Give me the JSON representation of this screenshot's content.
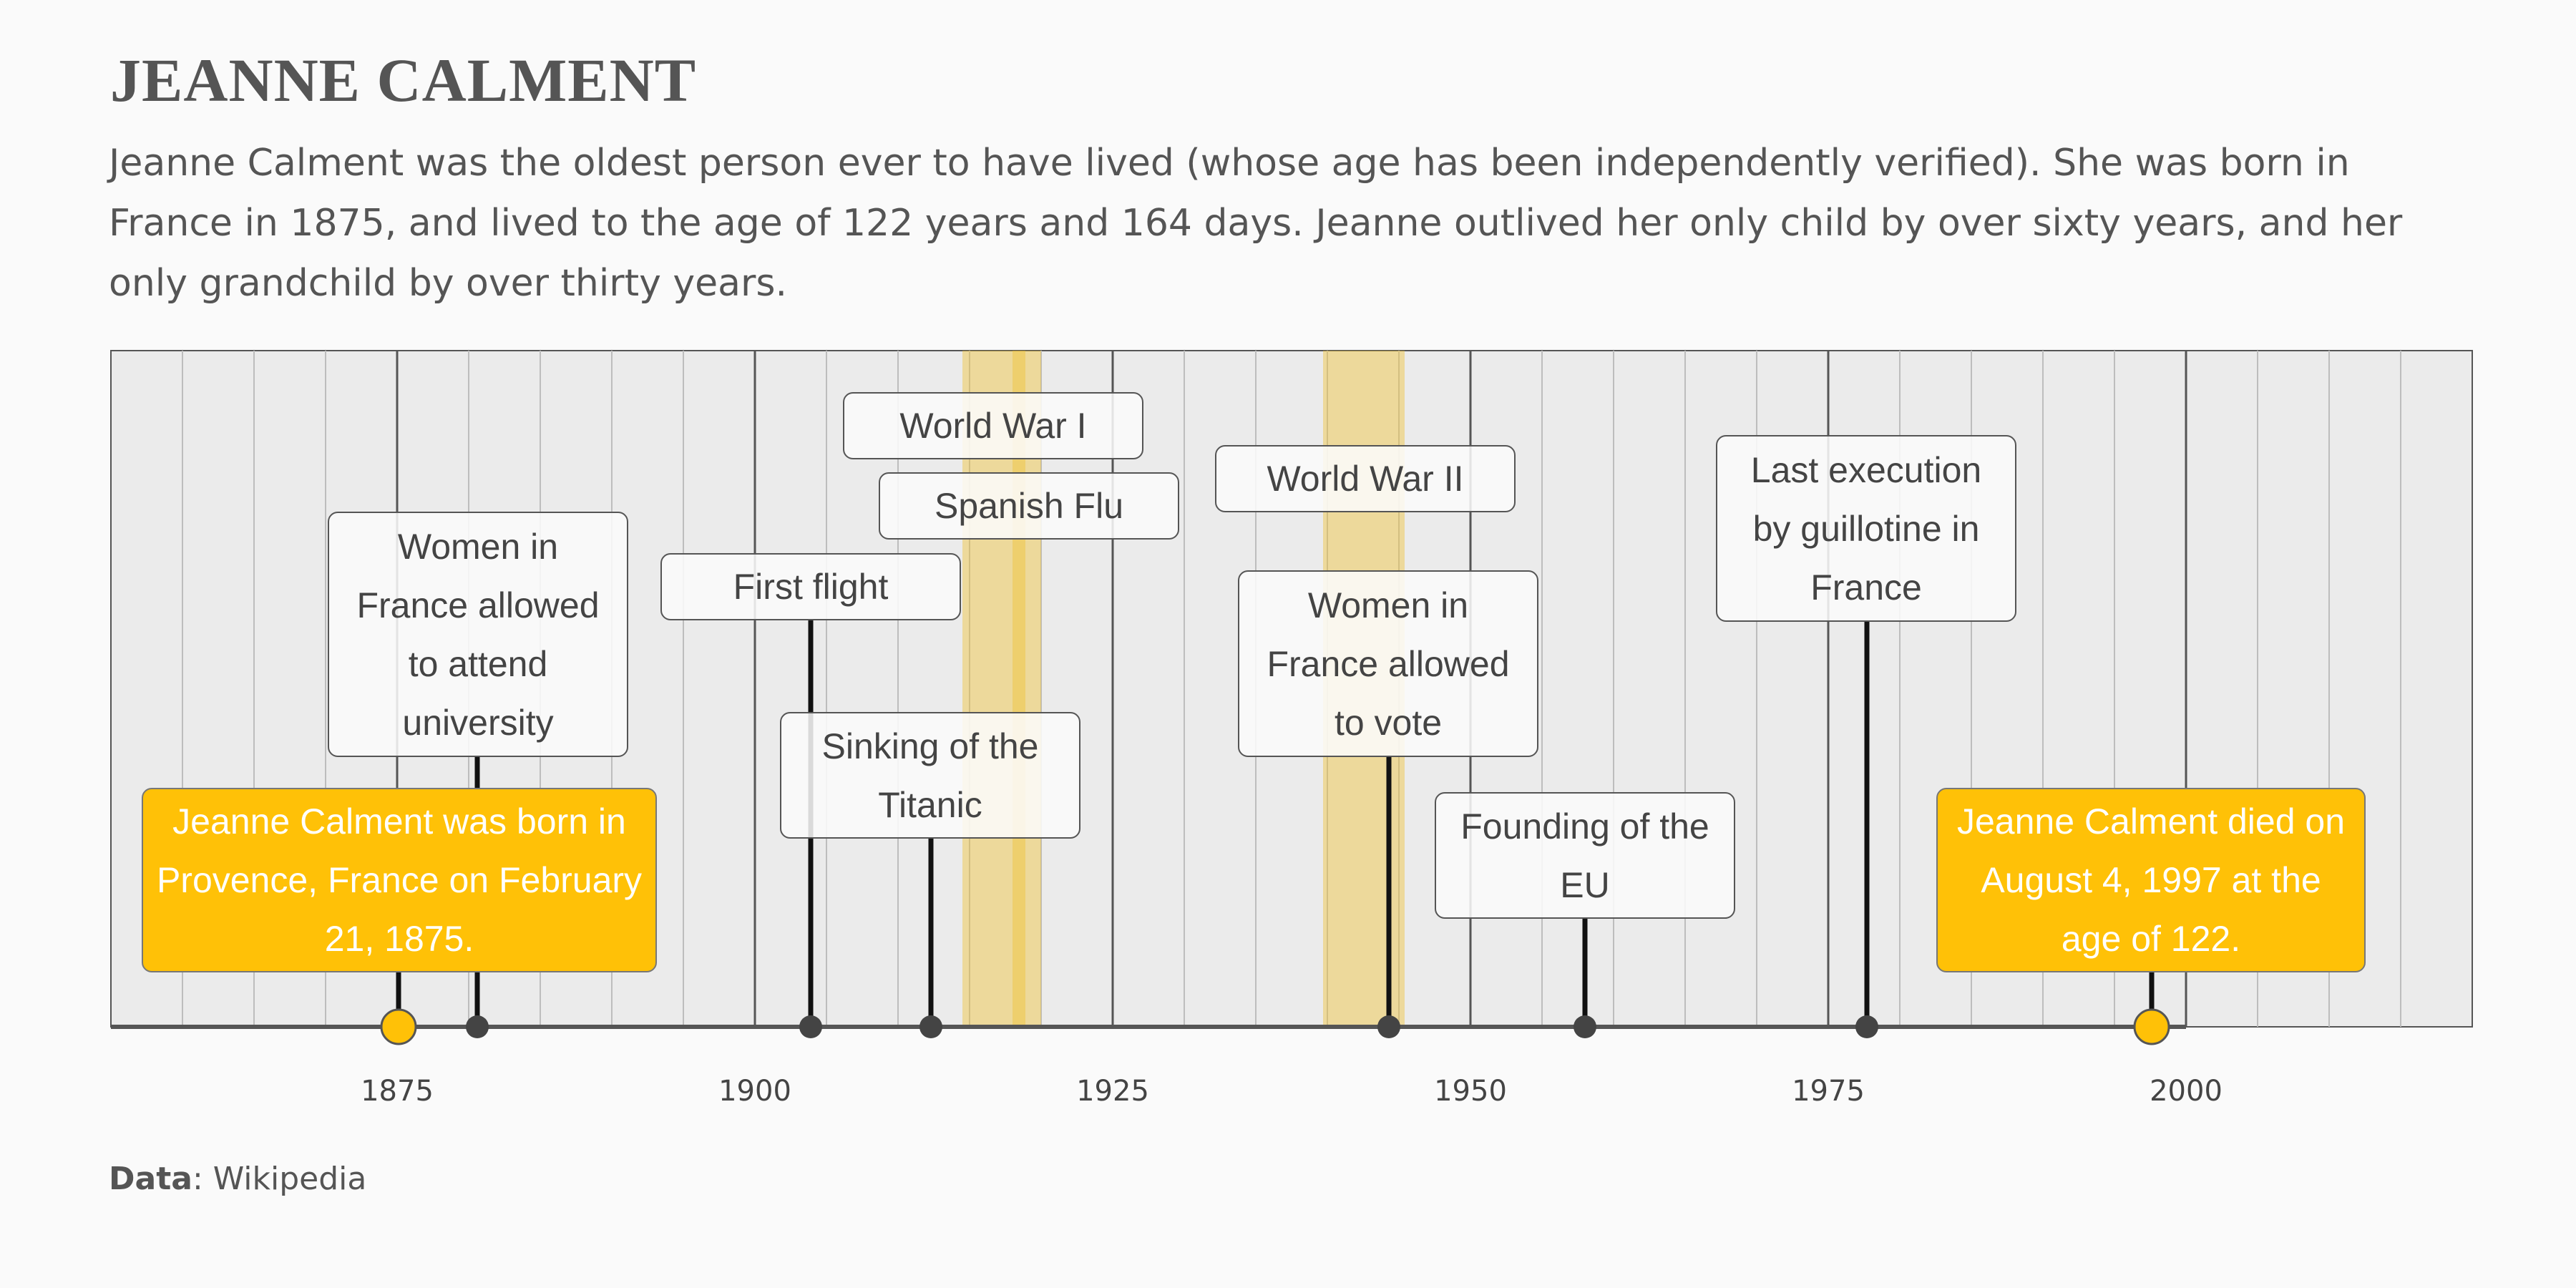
{
  "title": "JEANNE CALMENT",
  "subtitle": "Jeanne Calment was the oldest person ever to have lived (whose age has been independently verified). She was born in France in 1875, and lived to the age of 122 years and 164 days. Jeanne outlived her only child by over sixty years, and her only grandchild by over thirty years.",
  "source": {
    "label": "Data",
    "value": ": Wikipedia"
  },
  "colors": {
    "background": "#fafafa",
    "plot_bg": "#ebebeb",
    "milestone": "#ffc107",
    "period": "#f0c22e",
    "stem": "#111111",
    "dot": "#444444"
  },
  "chart_data": {
    "type": "timeline",
    "x_axis": {
      "min": 1855,
      "max": 2020,
      "ticks": [
        1875,
        1900,
        1925,
        1950,
        1975,
        2000
      ],
      "minor_step": 5
    },
    "periods": [
      {
        "name": "World War I",
        "start": 1914.5,
        "end": 1918.9
      },
      {
        "name": "Spanish Flu",
        "start": 1918,
        "end": 1920
      },
      {
        "name": "World War II",
        "start": 1939.7,
        "end": 1945.4
      }
    ],
    "events": [
      {
        "year": 1875.1,
        "label": "Jeanne Calment was born in Provence, France on February 21, 1875.",
        "kind": "milestone"
      },
      {
        "year": 1880.6,
        "label": "Women in France allowed to attend university",
        "kind": "event"
      },
      {
        "year": 1903.9,
        "label": "First flight",
        "kind": "event"
      },
      {
        "year": 1912.3,
        "label": "Sinking of the Titanic",
        "kind": "event"
      },
      {
        "year": 1944.3,
        "label": "Women in France allowed to vote",
        "kind": "event"
      },
      {
        "year": 1958,
        "label": "Founding of the EU",
        "kind": "event"
      },
      {
        "year": 1977.7,
        "label": "Last execution by guillotine in France",
        "kind": "event"
      },
      {
        "year": 1997.6,
        "label": "Jeanne Calment died on August 4, 1997 at the age of 122.",
        "kind": "milestone"
      }
    ],
    "period_labels": [
      {
        "label": "World War I",
        "year": 1916.7
      },
      {
        "label": "Spanish Flu",
        "year": 1919
      },
      {
        "label": "World War II",
        "year": 1942.5
      }
    ]
  }
}
